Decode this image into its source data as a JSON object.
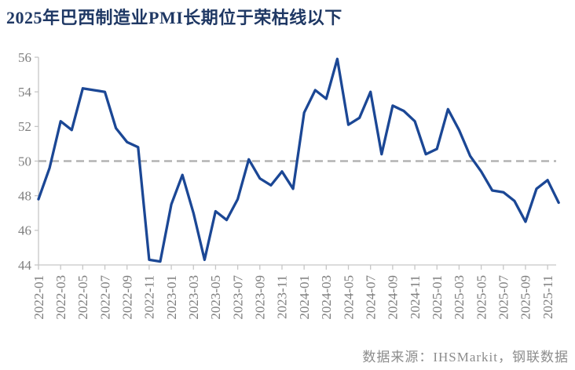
{
  "title": "2025年巴西制造业PMI长期位于荣枯线以下",
  "source_note": "数据来源：IHSMarkit，钢联数据",
  "colors": {
    "series_line": "#1B4795",
    "title_text": "#1F3864",
    "axis_line": "#C6C6C6",
    "tick_label": "#7F7F7F",
    "reference_line": "#B3B3B3"
  },
  "chart_data": {
    "type": "line",
    "title": "2025年巴西制造业PMI长期位于荣枯线以下",
    "xlabel": "",
    "ylabel": "",
    "ylim": [
      44,
      56
    ],
    "yticks": [
      44,
      46,
      48,
      50,
      52,
      54,
      56
    ],
    "reference_line": 50,
    "grid": false,
    "legend": "none",
    "x_tick_every": 2,
    "x": [
      "2022-01",
      "2022-02",
      "2022-03",
      "2022-04",
      "2022-05",
      "2022-06",
      "2022-07",
      "2022-08",
      "2022-09",
      "2022-10",
      "2022-11",
      "2022-12",
      "2023-01",
      "2023-02",
      "2023-03",
      "2023-04",
      "2023-05",
      "2023-06",
      "2023-07",
      "2023-08",
      "2023-09",
      "2023-10",
      "2023-11",
      "2023-12",
      "2024-01",
      "2024-02",
      "2024-03",
      "2024-04",
      "2024-05",
      "2024-06",
      "2024-07",
      "2024-08",
      "2024-09",
      "2024-10",
      "2024-11",
      "2024-12",
      "2025-01",
      "2025-02",
      "2025-03",
      "2025-04",
      "2025-05",
      "2025-06",
      "2025-07",
      "2025-08",
      "2025-09",
      "2025-10",
      "2025-11",
      "2025-12"
    ],
    "values": [
      47.8,
      49.6,
      52.3,
      51.8,
      54.2,
      54.1,
      54.0,
      51.9,
      51.1,
      50.8,
      44.3,
      44.2,
      47.5,
      49.2,
      47.0,
      44.3,
      47.1,
      46.6,
      47.8,
      50.1,
      49.0,
      48.6,
      49.4,
      48.4,
      52.8,
      54.1,
      53.6,
      55.9,
      52.1,
      52.5,
      54.0,
      50.4,
      53.2,
      52.9,
      52.3,
      50.4,
      50.7,
      53.0,
      51.8,
      50.3,
      49.4,
      48.3,
      48.2,
      47.7,
      46.5,
      48.4,
      48.9,
      47.6
    ]
  }
}
